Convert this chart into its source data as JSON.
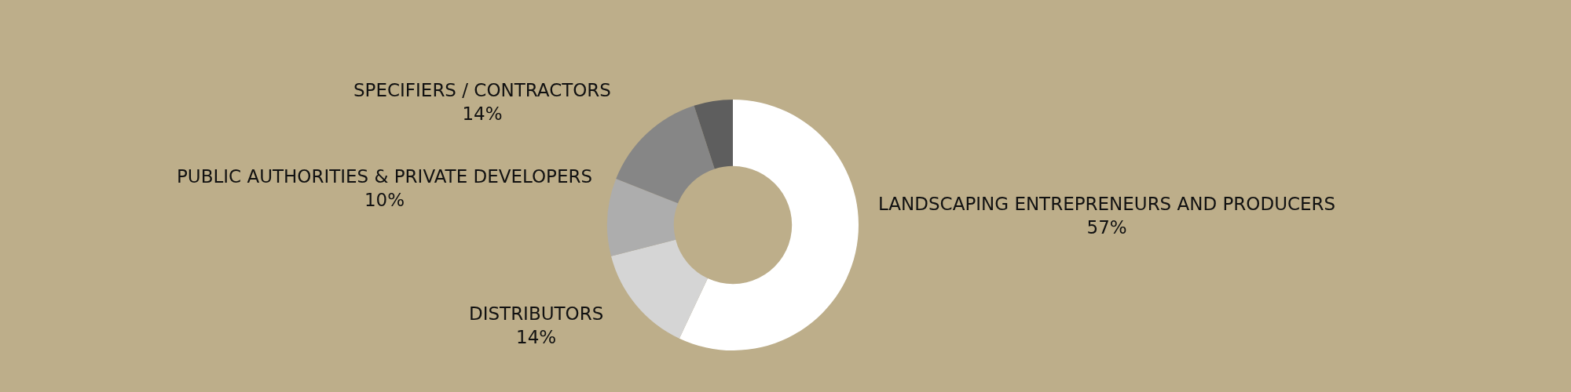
{
  "chart_data": {
    "type": "donut",
    "categories": [
      "LANDSCAPING ENTREPRENEURS AND PRODUCERS",
      "DISTRIBUTORS",
      "PUBLIC AUTHORITIES & PRIVATE DEVELOPERS",
      "SPECIFIERS / CONTRACTORS",
      null
    ],
    "values": [
      57,
      14,
      10,
      14,
      5
    ],
    "value_labels": [
      "57%",
      "14%",
      "10%",
      "14%",
      null
    ],
    "colors": [
      "#ffffff",
      "#d5d5d5",
      "#adadad",
      "#868686",
      "#5e5e5e"
    ],
    "legend": false
  }
}
